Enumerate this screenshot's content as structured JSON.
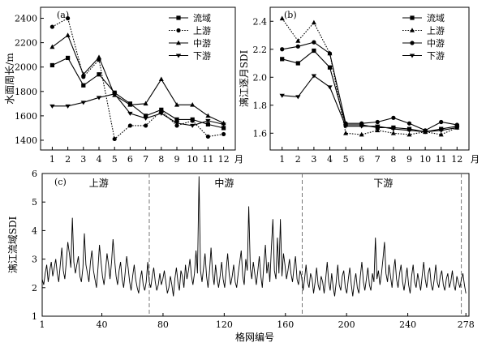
{
  "figure": {
    "month_unit": "月",
    "panel_labels": [
      "(a)",
      "(b)",
      "(c)"
    ]
  },
  "chart_data": [
    {
      "panel": "(a)",
      "type": "line",
      "ylabel": "水面周长/m",
      "xlabel": "",
      "x": [
        1,
        2,
        3,
        4,
        5,
        6,
        7,
        8,
        9,
        10,
        11,
        12
      ],
      "x_tick_labels": [
        "1",
        "2",
        "3",
        "4",
        "5",
        "6",
        "7",
        "8",
        "9",
        "10",
        "11",
        "12"
      ],
      "ylim": [
        1320,
        2490
      ],
      "y_ticks": [
        1400,
        1600,
        1800,
        2000,
        2200,
        2400
      ],
      "grid": false,
      "legend": "top-right",
      "series": [
        {
          "name": "流域",
          "marker": "square",
          "dash": "solid",
          "values": [
            2015,
            2075,
            1850,
            1940,
            1790,
            1700,
            1600,
            1650,
            1570,
            1570,
            1530,
            1500
          ]
        },
        {
          "name": "上游",
          "marker": "circle",
          "dash": "dotted",
          "values": [
            2330,
            2400,
            1920,
            2060,
            1410,
            1520,
            1520,
            1640,
            1520,
            1560,
            1430,
            1450
          ]
        },
        {
          "name": "中游",
          "marker": "triangle",
          "dash": "solid",
          "values": [
            2165,
            2260,
            1940,
            2080,
            1770,
            1690,
            1700,
            1900,
            1690,
            1690,
            1600,
            1540
          ]
        },
        {
          "name": "下游",
          "marker": "star",
          "dash": "solid",
          "values": [
            1680,
            1680,
            1710,
            1750,
            1780,
            1620,
            1580,
            1620,
            1540,
            1520,
            1560,
            1530
          ]
        }
      ]
    },
    {
      "panel": "(b)",
      "type": "line",
      "ylabel": "漓江逐月SDI",
      "xlabel": "",
      "x": [
        1,
        2,
        3,
        4,
        5,
        6,
        7,
        8,
        9,
        10,
        11,
        12
      ],
      "x_tick_labels": [
        "1",
        "2",
        "3",
        "4",
        "5",
        "6",
        "7",
        "8",
        "9",
        "10",
        "11",
        "12"
      ],
      "ylim": [
        1.48,
        2.5
      ],
      "y_ticks": [
        1.6,
        1.8,
        2.0,
        2.2,
        2.4
      ],
      "grid": false,
      "legend": "top-right",
      "series": [
        {
          "name": "流域",
          "marker": "square",
          "dash": "solid",
          "values": [
            2.13,
            2.1,
            2.19,
            2.07,
            1.66,
            1.66,
            1.64,
            1.64,
            1.63,
            1.61,
            1.63,
            1.65
          ]
        },
        {
          "name": "上游",
          "marker": "triangle",
          "dash": "dotted",
          "values": [
            2.42,
            2.26,
            2.39,
            2.17,
            1.6,
            1.59,
            1.62,
            1.6,
            1.59,
            1.61,
            1.59,
            1.64
          ]
        },
        {
          "name": "中游",
          "marker": "circle",
          "dash": "solid",
          "values": [
            2.2,
            2.22,
            2.25,
            2.17,
            1.67,
            1.67,
            1.68,
            1.71,
            1.67,
            1.62,
            1.68,
            1.66
          ]
        },
        {
          "name": "下游",
          "marker": "star",
          "dash": "solid",
          "values": [
            1.87,
            1.86,
            2.01,
            1.93,
            1.65,
            1.65,
            1.65,
            1.63,
            1.62,
            1.61,
            1.62,
            1.64
          ]
        }
      ]
    },
    {
      "panel": "(c)",
      "type": "line",
      "ylabel": "漓江流域SDI",
      "xlabel": "格网编号",
      "xlim": [
        1,
        280
      ],
      "x_ticks": [
        1,
        40,
        80,
        120,
        160,
        200,
        240,
        278
      ],
      "ylim": [
        1,
        6
      ],
      "y_ticks": [
        1,
        2,
        3,
        4,
        5,
        6
      ],
      "grid": false,
      "legend": "none",
      "region_labels": [
        {
          "label": "上游",
          "x": 38
        },
        {
          "label": "中游",
          "x": 120
        },
        {
          "label": "下游",
          "x": 224
        }
      ],
      "region_boundaries": [
        71,
        171,
        275
      ],
      "series": [
        {
          "name": "",
          "values": [
            2.3,
            2.1,
            2.5,
            2.8,
            2.2,
            2.6,
            2.9,
            2.4,
            2.7,
            3.0,
            2.5,
            2.2,
            2.8,
            3.4,
            2.6,
            2.3,
            2.9,
            3.6,
            3.2,
            2.7,
            4.45,
            2.9,
            2.5,
            2.8,
            3.1,
            2.4,
            2.2,
            2.7,
            3.9,
            2.8,
            2.5,
            2.2,
            2.9,
            3.3,
            2.6,
            2.3,
            2.0,
            2.7,
            3.5,
            2.9,
            2.4,
            2.1,
            2.6,
            3.2,
            2.8,
            2.3,
            2.9,
            3.7,
            3.0,
            2.4,
            2.1,
            2.6,
            2.9,
            2.3,
            2.0,
            2.5,
            3.1,
            2.7,
            2.2,
            1.9,
            2.4,
            2.8,
            2.3,
            2.0,
            1.8,
            2.3,
            2.6,
            2.1,
            1.9,
            2.2,
            2.9,
            2.2,
            2.0,
            2.4,
            2.7,
            2.2,
            1.9,
            2.1,
            2.5,
            2.1,
            2.3,
            2.6,
            2.2,
            1.8,
            2.0,
            2.4,
            2.1,
            1.7,
            2.3,
            2.7,
            2.2,
            1.9,
            2.6,
            2.4,
            2.0,
            2.8,
            2.3,
            2.6,
            3.0,
            2.4,
            2.1,
            2.5,
            3.3,
            2.5,
            5.9,
            2.6,
            2.2,
            2.7,
            3.2,
            2.4,
            2.0,
            2.6,
            3.4,
            2.5,
            2.1,
            2.8,
            2.3,
            2.0,
            2.4,
            2.9,
            2.3,
            2.0,
            2.6,
            3.2,
            2.5,
            2.1,
            2.4,
            2.8,
            2.2,
            2.0,
            2.5,
            2.9,
            3.3,
            2.4,
            2.1,
            3.0,
            2.6,
            4.85,
            2.7,
            2.3,
            2.9,
            2.5,
            2.1,
            2.6,
            3.1,
            2.4,
            2.0,
            2.8,
            3.5,
            2.5,
            2.9,
            2.2,
            3.4,
            4.4,
            2.6,
            2.3,
            3.75,
            2.5,
            4.4,
            2.4,
            3.2,
            2.8,
            2.3,
            2.6,
            3.0,
            2.5,
            2.2,
            2.7,
            3.1,
            2.3,
            2.1,
            2.6,
            2.4,
            1.9,
            2.3,
            2.8,
            2.2,
            2.0,
            2.5,
            2.3,
            1.8,
            2.2,
            2.7,
            2.1,
            1.9,
            2.4,
            2.2,
            1.8,
            2.3,
            2.9,
            2.2,
            1.9,
            2.5,
            2.0,
            1.7,
            2.2,
            2.8,
            2.1,
            1.9,
            2.4,
            2.6,
            2.0,
            1.8,
            2.3,
            2.7,
            2.1,
            1.7,
            2.2,
            2.5,
            2.0,
            1.8,
            2.4,
            2.9,
            2.2,
            1.9,
            2.3,
            2.7,
            2.1,
            1.9,
            2.5,
            2.2,
            3.75,
            2.3,
            2.6,
            2.1,
            2.5,
            3.0,
            3.6,
            2.5,
            2.2,
            2.8,
            2.4,
            2.0,
            2.6,
            3.0,
            2.3,
            2.0,
            2.5,
            2.8,
            2.2,
            1.9,
            2.3,
            2.7,
            2.1,
            1.8,
            2.4,
            2.8,
            2.2,
            2.0,
            2.5,
            2.2,
            1.9,
            2.4,
            2.9,
            2.3,
            2.0,
            2.5,
            2.7,
            2.1,
            1.9,
            2.3,
            2.8,
            2.2,
            2.0,
            2.4,
            2.6,
            2.1,
            1.9,
            2.3,
            2.5,
            2.0,
            2.2,
            2.6,
            2.1,
            1.9,
            2.4,
            2.2,
            2.0,
            2.3,
            2.5,
            2.1,
            1.8
          ]
        }
      ]
    }
  ]
}
